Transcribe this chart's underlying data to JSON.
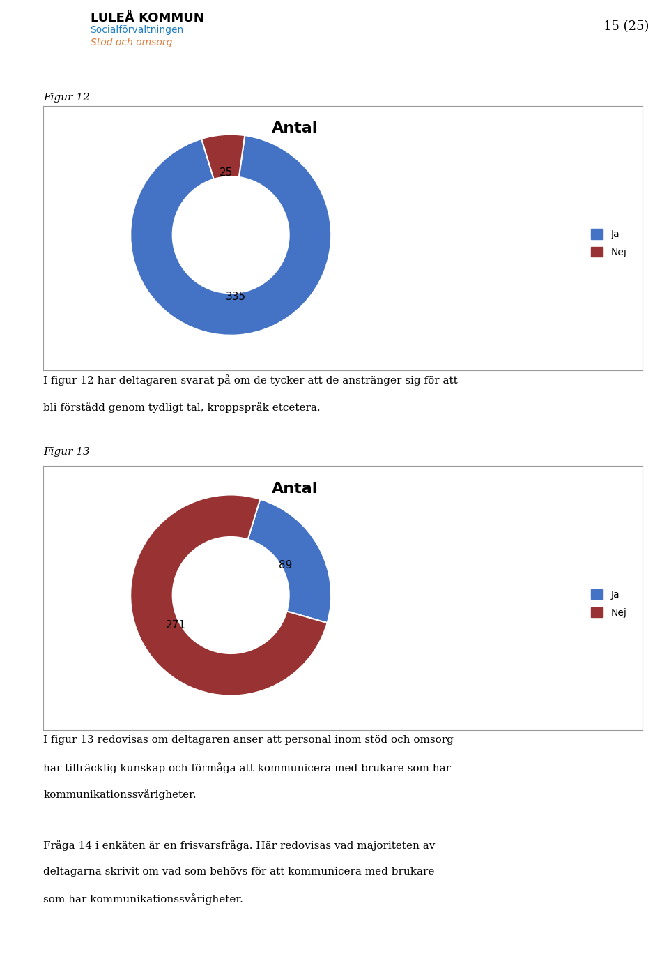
{
  "page_title": "15 (25)",
  "header_org": "LULEÅ KOMMUN",
  "header_sub1": "Socialförvaltningen",
  "header_sub2": "Stöd och omsorg",
  "fig12_label": "Figur 12",
  "fig12_title": "Antal",
  "fig12_values": [
    335,
    25
  ],
  "fig12_colors": [
    "#4472C4",
    "#993333"
  ],
  "fig12_labels": [
    "Ja",
    "Nej"
  ],
  "fig12_text_below_lines": [
    "I figur 12 har deltagaren svarat på om de tycker att de anstränger sig för att",
    "bli förstådd genom tydligt tal, kroppspråk etcetera."
  ],
  "fig13_label": "Figur 13",
  "fig13_title": "Antal",
  "fig13_values": [
    89,
    271
  ],
  "fig13_colors": [
    "#4472C4",
    "#993333"
  ],
  "fig13_labels": [
    "Ja",
    "Nej"
  ],
  "fig13_text_below_lines": [
    "I figur 13 redovisas om deltagaren anser att personal inom stöd och omsorg",
    "har tillräcklig kunskap och förmåga att kommunicera med brukare som har",
    "kommunikationssvårigheter."
  ],
  "footer_lines": [
    "Fråga 14 i enkäten är en frisvarsfråga. Här redovisas vad majoriteten av",
    "deltagarna skrivit om vad som behövs för att kommunicera med brukare",
    "som har kommunikationssvårigheter."
  ],
  "header_blue": "#1F7EC2",
  "header_orange": "#E07B39",
  "fig12_startangle": 82,
  "fig13_startangle": 73,
  "donut_width": 0.42
}
